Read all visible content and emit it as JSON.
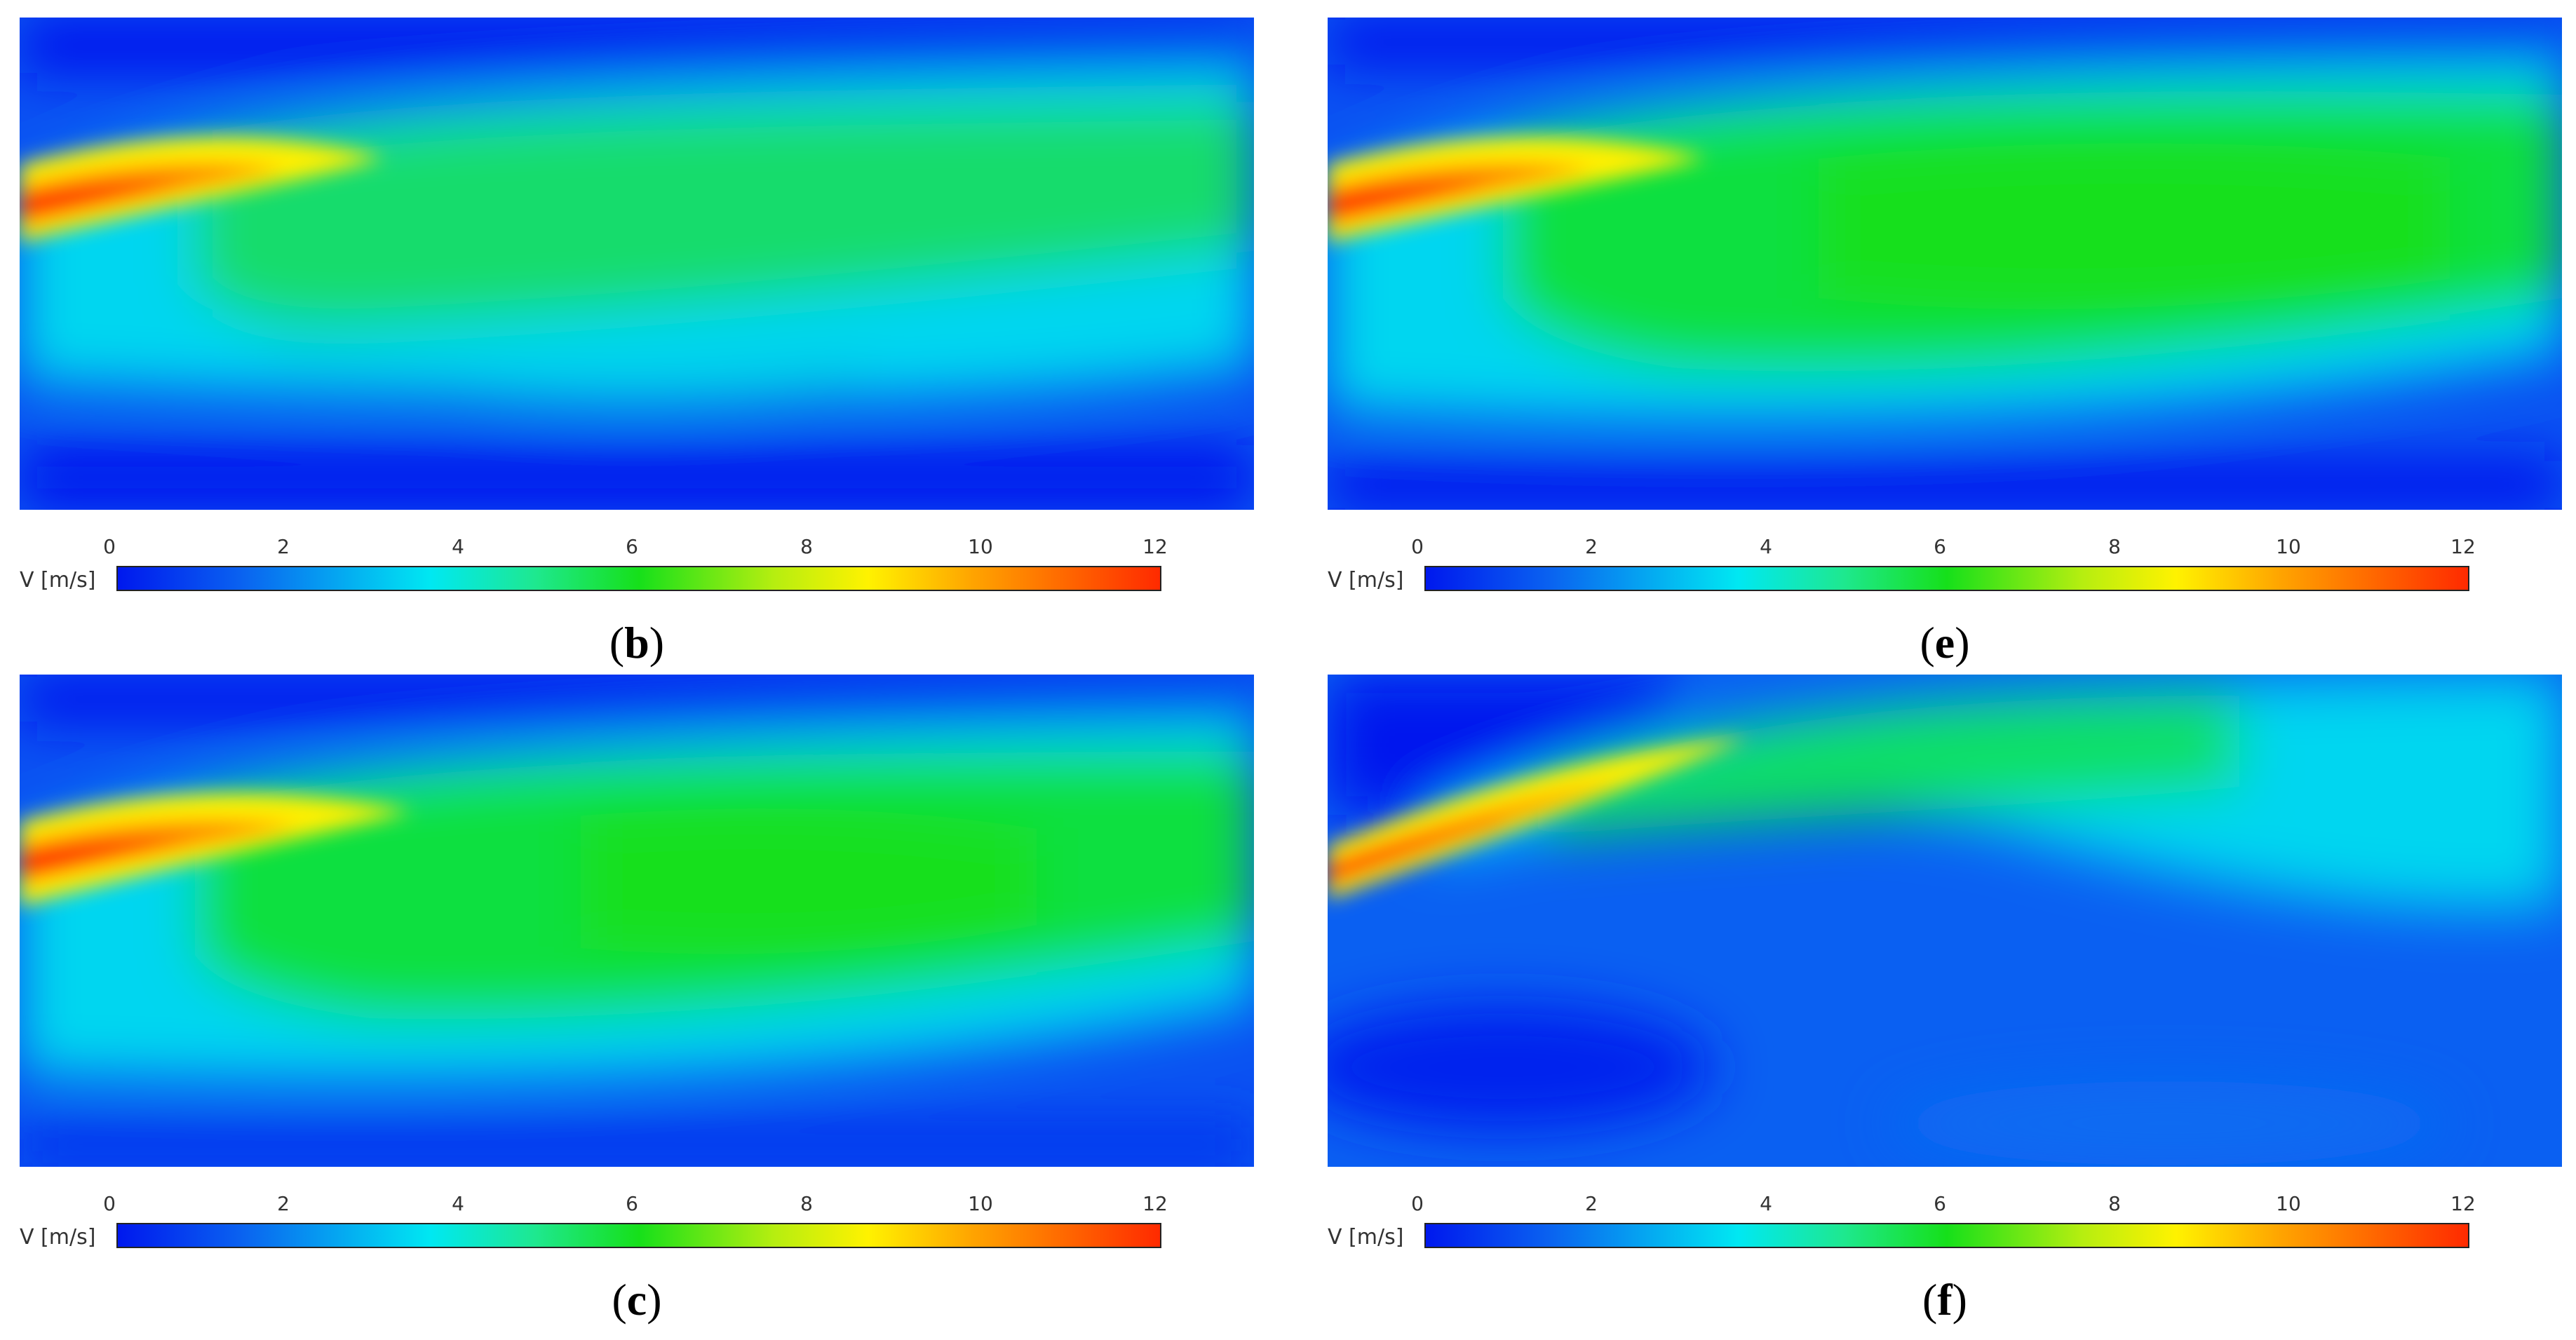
{
  "colorbar": {
    "label": "V [m/s]",
    "ticks": [
      "0",
      "2",
      "4",
      "6",
      "8",
      "10",
      "12"
    ],
    "range": [
      0,
      12
    ],
    "colors": [
      "#0018ee",
      "#0a63f0",
      "#00e8f2",
      "#1ee890",
      "#16e01a",
      "#b6ee10",
      "#fff200",
      "#ffa400",
      "#ff2a00"
    ]
  },
  "panels": [
    {
      "open": "(",
      "letter": "b",
      "close": ")"
    },
    {
      "open": "(",
      "letter": "e",
      "close": ")"
    },
    {
      "open": "(",
      "letter": "c",
      "close": ")"
    },
    {
      "open": "(",
      "letter": "f",
      "close": ")"
    }
  ]
}
